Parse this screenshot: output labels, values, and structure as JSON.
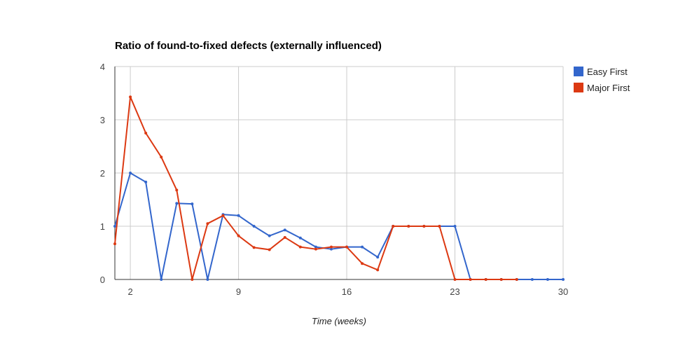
{
  "chart_data": {
    "type": "line",
    "title": "Ratio of found-to-fixed defects (externally influenced)",
    "xlabel": "Time (weeks)",
    "ylabel": "",
    "xlim": [
      1,
      30
    ],
    "ylim": [
      0,
      4
    ],
    "x_ticks": [
      2,
      9,
      16,
      23,
      30
    ],
    "y_ticks": [
      0,
      1,
      2,
      3,
      4
    ],
    "grid": true,
    "legend_position": "right-top",
    "x": [
      1,
      2,
      3,
      4,
      5,
      6,
      7,
      8,
      9,
      10,
      11,
      12,
      13,
      14,
      15,
      16,
      17,
      18,
      19,
      20,
      21,
      22,
      23,
      24,
      25,
      26,
      27,
      28,
      29,
      30
    ],
    "series": [
      {
        "name": "Easy First",
        "color": "#3366cc",
        "values": [
          1.0,
          2.0,
          1.83,
          0.0,
          1.43,
          1.42,
          0.0,
          1.22,
          1.2,
          1.0,
          0.82,
          0.93,
          0.78,
          0.61,
          0.57,
          0.61,
          0.61,
          0.42,
          1.0,
          1.0,
          1.0,
          1.0,
          1.0,
          0.0,
          0.0,
          0.0,
          0.0,
          0.0,
          0.0,
          0.0
        ]
      },
      {
        "name": "Major First",
        "color": "#dc3912",
        "values": [
          0.67,
          3.43,
          2.75,
          2.3,
          1.68,
          0.0,
          1.05,
          1.2,
          0.82,
          0.6,
          0.56,
          0.79,
          0.61,
          0.57,
          0.61,
          0.61,
          0.3,
          0.18,
          1.0,
          1.0,
          1.0,
          1.0,
          0.0,
          0.0,
          0.0,
          0.0,
          0.0,
          null,
          null,
          null
        ]
      }
    ]
  }
}
